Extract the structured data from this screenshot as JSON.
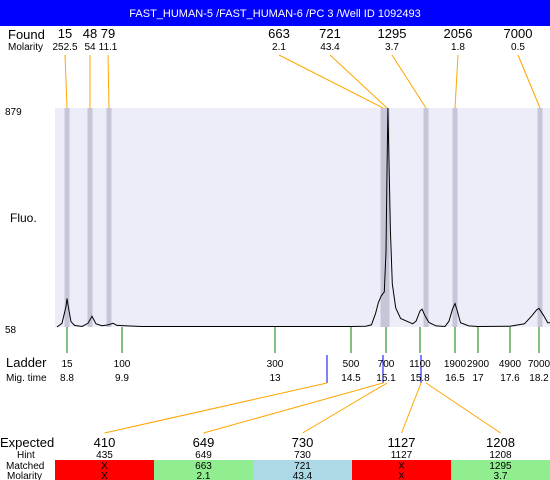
{
  "title": "FAST_HUMAN-5 /FAST_HUMAN-6 /PC 3 /Well ID 1092493",
  "labels": {
    "found": "Found",
    "molarity": "Molarity",
    "fluo": "Fluo.",
    "ladder": "Ladder",
    "mig_time": "Mig. time",
    "expected": "Expected",
    "hint": "Hint",
    "matched": "Matched",
    "molarity_bottom": "Molarity"
  },
  "colors": {
    "title_bar": "#0000ff",
    "plot_bg": "#ededfa",
    "peak_band": "#c6c6d8",
    "trace": "#000000",
    "found_leader": "#ffa500",
    "ladder_tick": "#008000",
    "ladder_marker": "#0000ff",
    "match_red": "#ff0000",
    "match_green": "#90ee90",
    "match_blue": "#add8e6"
  },
  "chart_data": {
    "type": "line",
    "ylabel": "Fluo.",
    "ylim": [
      58,
      879
    ],
    "y_ticks": [
      "879",
      "58"
    ],
    "found_peaks": [
      {
        "size": "15",
        "molarity": "252.5"
      },
      {
        "size": "48",
        "molarity": "54"
      },
      {
        "size": "79",
        "molarity": "11.1"
      },
      {
        "size": "663",
        "molarity": "2.1"
      },
      {
        "size": "721",
        "molarity": "43.4"
      },
      {
        "size": "1295",
        "molarity": "3.7"
      },
      {
        "size": "2056",
        "molarity": "1.8"
      },
      {
        "size": "7000",
        "molarity": "0.5"
      }
    ],
    "ladder": [
      {
        "size": "15",
        "mig_time": "8.8"
      },
      {
        "size": "100",
        "mig_time": "9.9"
      },
      {
        "size": "300",
        "mig_time": "13"
      },
      {
        "size": "500",
        "mig_time": "14.5"
      },
      {
        "size": "700",
        "mig_time": "15.1"
      },
      {
        "size": "1100",
        "mig_time": "15.8"
      },
      {
        "size": "1900",
        "mig_time": "16.5"
      },
      {
        "size": "2900",
        "mig_time": "17"
      },
      {
        "size": "4900",
        "mig_time": "17.6"
      },
      {
        "size": "7000",
        "mig_time": "18.2"
      }
    ],
    "expected": [
      {
        "expected": "410",
        "hint": "435",
        "matched": "X",
        "molarity": "X",
        "status": "red"
      },
      {
        "expected": "649",
        "hint": "649",
        "matched": "663",
        "molarity": "2.1",
        "status": "green"
      },
      {
        "expected": "730",
        "hint": "730",
        "matched": "721",
        "molarity": "43.4",
        "status": "blue"
      },
      {
        "expected": "1127",
        "hint": "1127",
        "matched": "X",
        "molarity": "X",
        "status": "red"
      },
      {
        "expected": "1208",
        "hint": "1208",
        "matched": "1295",
        "molarity": "3.7",
        "status": "green"
      }
    ],
    "trace": [
      [
        8.6,
        58
      ],
      [
        8.7,
        72
      ],
      [
        8.78,
        135
      ],
      [
        8.8,
        165
      ],
      [
        8.82,
        140
      ],
      [
        8.88,
        78
      ],
      [
        8.95,
        64
      ],
      [
        9.1,
        60
      ],
      [
        9.22,
        72
      ],
      [
        9.3,
        98
      ],
      [
        9.38,
        70
      ],
      [
        9.5,
        63
      ],
      [
        9.62,
        66
      ],
      [
        9.72,
        72
      ],
      [
        9.8,
        64
      ],
      [
        10.3,
        60
      ],
      [
        11.5,
        60
      ],
      [
        13,
        60
      ],
      [
        14.5,
        60
      ],
      [
        14.75,
        61
      ],
      [
        14.85,
        66
      ],
      [
        14.92,
        108
      ],
      [
        14.97,
        150
      ],
      [
        15.02,
        175
      ],
      [
        15.07,
        190
      ],
      [
        15.1,
        340
      ],
      [
        15.12,
        640
      ],
      [
        15.14,
        879
      ],
      [
        15.16,
        700
      ],
      [
        15.19,
        420
      ],
      [
        15.23,
        220
      ],
      [
        15.3,
        130
      ],
      [
        15.4,
        90
      ],
      [
        15.55,
        78
      ],
      [
        15.65,
        70
      ],
      [
        15.72,
        80
      ],
      [
        15.8,
        118
      ],
      [
        15.84,
        125
      ],
      [
        15.9,
        100
      ],
      [
        15.98,
        75
      ],
      [
        16.12,
        62
      ],
      [
        16.3,
        60
      ],
      [
        16.38,
        80
      ],
      [
        16.45,
        125
      ],
      [
        16.5,
        146
      ],
      [
        16.55,
        118
      ],
      [
        16.62,
        74
      ],
      [
        16.8,
        62
      ],
      [
        17,
        60
      ],
      [
        17.6,
        61
      ],
      [
        17.9,
        70
      ],
      [
        18.05,
        100
      ],
      [
        18.15,
        122
      ],
      [
        18.2,
        128
      ],
      [
        18.3,
        100
      ],
      [
        18.38,
        74
      ]
    ]
  }
}
